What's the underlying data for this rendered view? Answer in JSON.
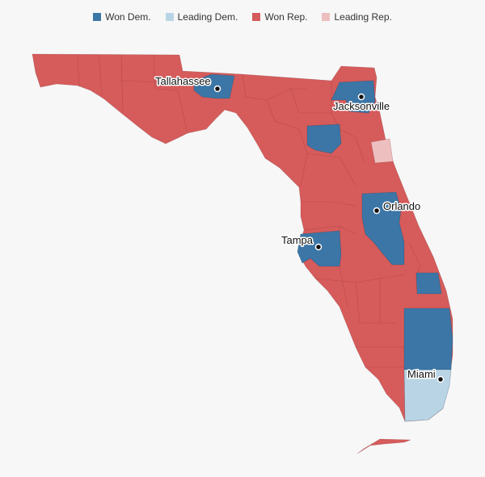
{
  "legend": {
    "items": [
      {
        "label": "Won Dem.",
        "color": "#3b76a6"
      },
      {
        "label": "Leading Dem.",
        "color": "#b9d5e5"
      },
      {
        "label": "Won Rep.",
        "color": "#d65b5b"
      },
      {
        "label": "Leading Rep.",
        "color": "#eebfbf"
      }
    ]
  },
  "colors": {
    "won_dem": "#3b76a6",
    "leading_dem": "#b9d5e5",
    "won_rep": "#d65b5b",
    "leading_rep": "#eebfbf",
    "background": "#f7f7f7"
  },
  "cities": {
    "tallahassee": "Tallahassee",
    "jacksonville": "Jacksonville",
    "orlando": "Orlando",
    "tampa": "Tampa",
    "miami": "Miami"
  }
}
